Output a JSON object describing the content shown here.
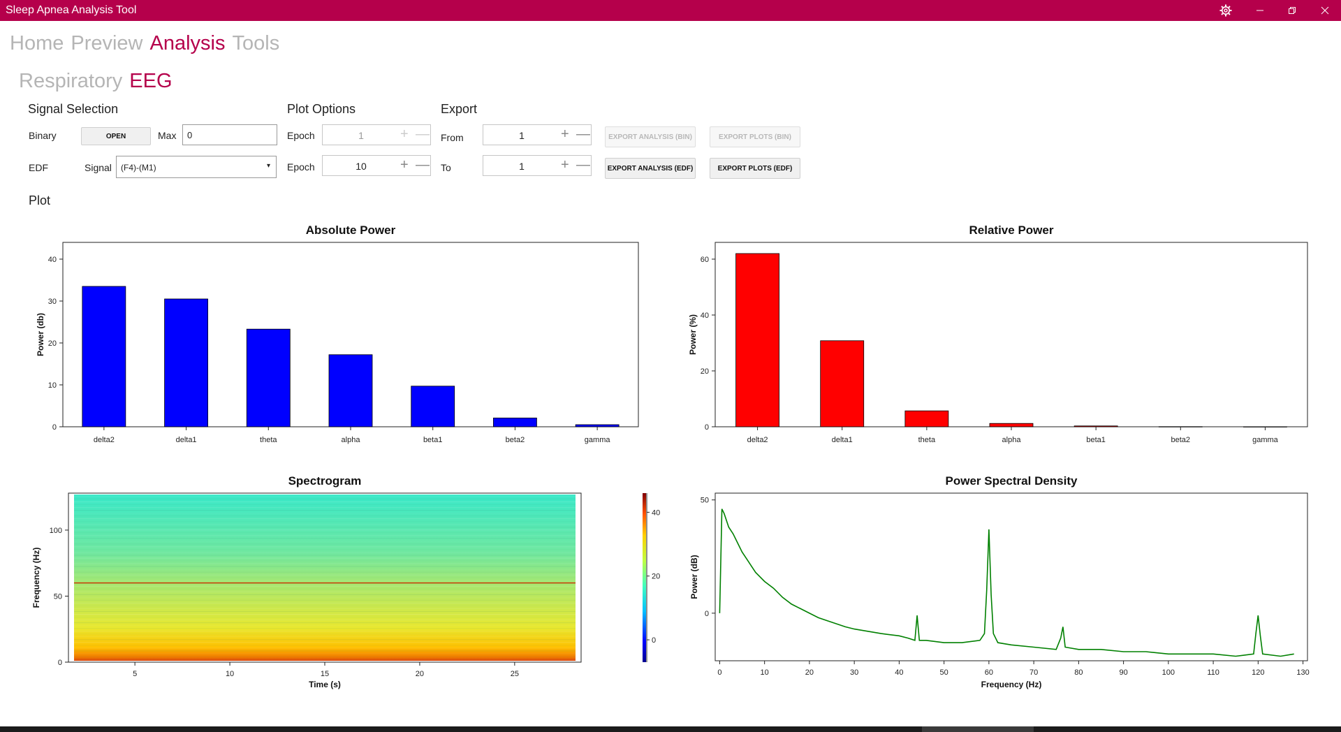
{
  "app": {
    "title": "Sleep Apnea Analysis Tool",
    "titlebar_color": "#b5004b",
    "icons": [
      "gear-icon",
      "minimize-icon",
      "restore-icon",
      "close-icon"
    ]
  },
  "nav": {
    "main_tabs": [
      {
        "label": "Home",
        "active": false
      },
      {
        "label": "Preview",
        "active": false
      },
      {
        "label": "Analysis",
        "active": true
      },
      {
        "label": "Tools",
        "active": false
      }
    ],
    "sub_tabs": [
      {
        "label": "Respiratory",
        "active": false
      },
      {
        "label": "EEG",
        "active": true
      }
    ]
  },
  "signal_selection": {
    "heading": "Signal Selection",
    "binary_label": "Binary",
    "open_label": "OPEN",
    "max_label": "Max",
    "max_value": "0",
    "edf_label": "EDF",
    "signal_label": "Signal",
    "signal_value": "(F4)-(M1)"
  },
  "plot_options": {
    "heading": "Plot Options",
    "epoch_label": "Epoch",
    "epoch1_value": "1",
    "epoch2_label": "Epoch",
    "epoch2_value": "10"
  },
  "export": {
    "heading": "Export",
    "from_label": "From",
    "from_value": "1",
    "to_label": "To",
    "to_value": "1",
    "export_analysis_bin": "EXPORT ANALYSIS (BIN)",
    "export_plots_bin": "EXPORT PLOTS (BIN)",
    "export_analysis_edf": "EXPORT ANALYSIS (EDF)",
    "export_plots_edf": "EXPORT PLOTS (EDF)"
  },
  "plot": {
    "heading": "Plot"
  },
  "chart_data": [
    {
      "type": "bar",
      "title": "Absolute Power",
      "ylabel": "Power (db)",
      "xlabel": "",
      "categories": [
        "delta2",
        "delta1",
        "theta",
        "alpha",
        "beta1",
        "beta2",
        "gamma"
      ],
      "values": [
        33.5,
        30.5,
        23.3,
        17.2,
        9.7,
        2.1,
        0.5
      ],
      "ylim": [
        0,
        44
      ],
      "yticks": [
        0,
        10,
        20,
        30,
        40
      ],
      "color": "#0000ff"
    },
    {
      "type": "bar",
      "title": "Relative Power",
      "ylabel": "Power (%)",
      "xlabel": "",
      "categories": [
        "delta2",
        "delta1",
        "theta",
        "alpha",
        "beta1",
        "beta2",
        "gamma"
      ],
      "values": [
        62.0,
        30.8,
        5.7,
        1.2,
        0.3,
        0.05,
        0.02
      ],
      "ylim": [
        0,
        66
      ],
      "yticks": [
        0,
        20,
        40,
        60
      ],
      "color": "#ff0000"
    },
    {
      "type": "heatmap",
      "title": "Spectrogram",
      "xlabel": "Time (s)",
      "ylabel": "Frequency (Hz)",
      "xlim": [
        1.5,
        28.5
      ],
      "xticks": [
        5,
        10,
        15,
        20,
        25
      ],
      "ylim": [
        0,
        128
      ],
      "yticks": [
        0,
        50,
        100
      ],
      "colorbar_ticks": [
        0,
        20,
        40
      ],
      "colorbar_range": [
        -7,
        46
      ],
      "line_noise_hz": 60
    },
    {
      "type": "line",
      "title": "Power Spectral Density",
      "xlabel": "Frequency (Hz)",
      "ylabel": "Power (dB)",
      "xlim": [
        -1,
        131
      ],
      "xticks": [
        0,
        10,
        20,
        30,
        40,
        50,
        60,
        70,
        80,
        90,
        100,
        110,
        120,
        130
      ],
      "ylim": [
        -21,
        53
      ],
      "yticks": [
        0,
        50
      ],
      "color": "#008000",
      "x": [
        0,
        0.5,
        1,
        2,
        3,
        4,
        5,
        6,
        7,
        8,
        10,
        12,
        14,
        16,
        18,
        20,
        22,
        25,
        28,
        30,
        33,
        36,
        40,
        42,
        43.5,
        44,
        44.5,
        46,
        50,
        54,
        58,
        59,
        59.5,
        60,
        60.5,
        61,
        62,
        65,
        70,
        75,
        76,
        76.5,
        77,
        80,
        85,
        90,
        95,
        100,
        105,
        110,
        115,
        119,
        119.5,
        120,
        120.5,
        121,
        125,
        128
      ],
      "y": [
        0,
        46,
        44,
        38,
        35,
        31,
        27,
        24,
        21,
        18,
        14,
        11,
        7,
        4,
        2,
        0,
        -2,
        -4,
        -6,
        -7,
        -8,
        -9,
        -10,
        -11,
        -12,
        -1,
        -12,
        -12,
        -13,
        -13,
        -12,
        -9,
        10,
        37,
        8,
        -9,
        -13,
        -14,
        -15,
        -16,
        -11,
        -6,
        -15,
        -16,
        -16,
        -17,
        -17,
        -18,
        -18,
        -18,
        -19,
        -18,
        -9,
        -1,
        -10,
        -18,
        -19,
        -18
      ]
    }
  ]
}
